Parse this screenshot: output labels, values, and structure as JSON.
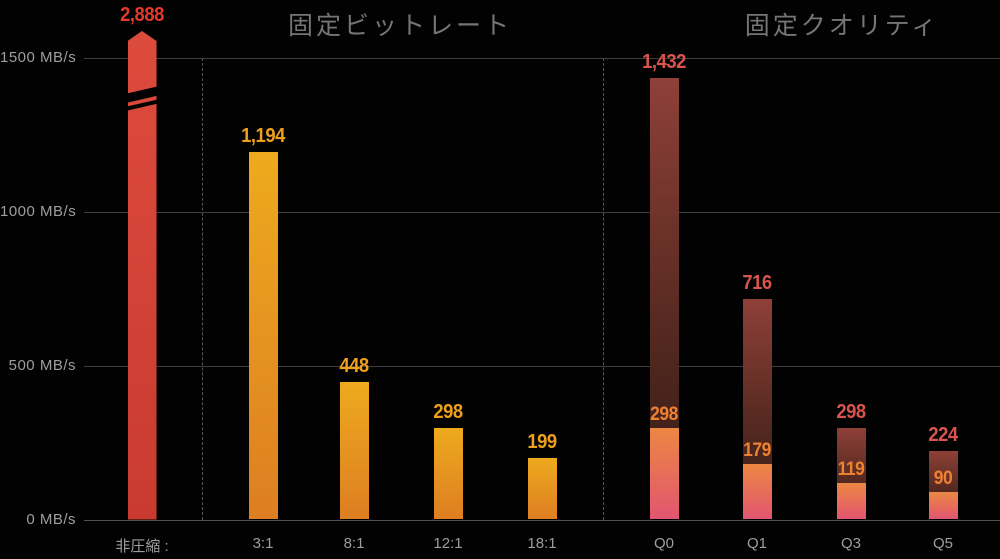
{
  "chart_data": {
    "type": "bar",
    "unit": "MB/s",
    "y_axis": {
      "view_max": 1500,
      "ticks": [
        {
          "value": 0,
          "label": "0 MB/s"
        },
        {
          "value": 500,
          "label": "500 MB/s"
        },
        {
          "value": 1000,
          "label": "1000 MB/s"
        },
        {
          "value": 1500,
          "label": "1500 MB/s"
        }
      ]
    },
    "groups": [
      {
        "title": "固定ビットレート",
        "bars": [
          {
            "label": "非圧縮 :",
            "value": 2888,
            "value_label": "2,888",
            "style": "red",
            "truncated": true
          },
          {
            "label": "3:1",
            "value": 1194,
            "value_label": "1,194",
            "style": "amber"
          },
          {
            "label": "8:1",
            "value": 448,
            "value_label": "448",
            "style": "amber"
          },
          {
            "label": "12:1",
            "value": 298,
            "value_label": "298",
            "style": "amber"
          },
          {
            "label": "18:1",
            "value": 199,
            "value_label": "199",
            "style": "amber"
          }
        ]
      },
      {
        "title": "固定クオリティ",
        "bars": [
          {
            "label": "Q0",
            "value": 1432,
            "value_label": "1,432",
            "inner_value": 298,
            "inner_label": "298",
            "style": "maroon"
          },
          {
            "label": "Q1",
            "value": 716,
            "value_label": "716",
            "inner_value": 179,
            "inner_label": "179",
            "style": "maroon"
          },
          {
            "label": "Q3",
            "value": 298,
            "value_label": "298",
            "inner_value": 119,
            "inner_label": "119",
            "style": "maroon"
          },
          {
            "label": "Q5",
            "value": 224,
            "value_label": "224",
            "inner_value": 90,
            "inner_label": "90",
            "style": "maroon"
          }
        ]
      }
    ],
    "colors": {
      "background": "#020202",
      "bar_red": "#d8453a",
      "bar_amber_top": "#eeaa1e",
      "bar_amber_bottom": "#dd7e22",
      "bar_maroon_top": "#8e4038",
      "bar_maroon_bottom": "#301a15",
      "inner_top": "#ec8742",
      "inner_bottom": "#e25570",
      "label_red": "#e5382c",
      "label_amber": "#eea01c",
      "label_pink": "#d9544d",
      "label_orange": "#ee8230",
      "axis_text": "#9e9e9e",
      "title_text": "#757575",
      "gridline": "#3d3d3d"
    },
    "legend": null,
    "grid": "horizontal solid + vertical dashed separators"
  }
}
